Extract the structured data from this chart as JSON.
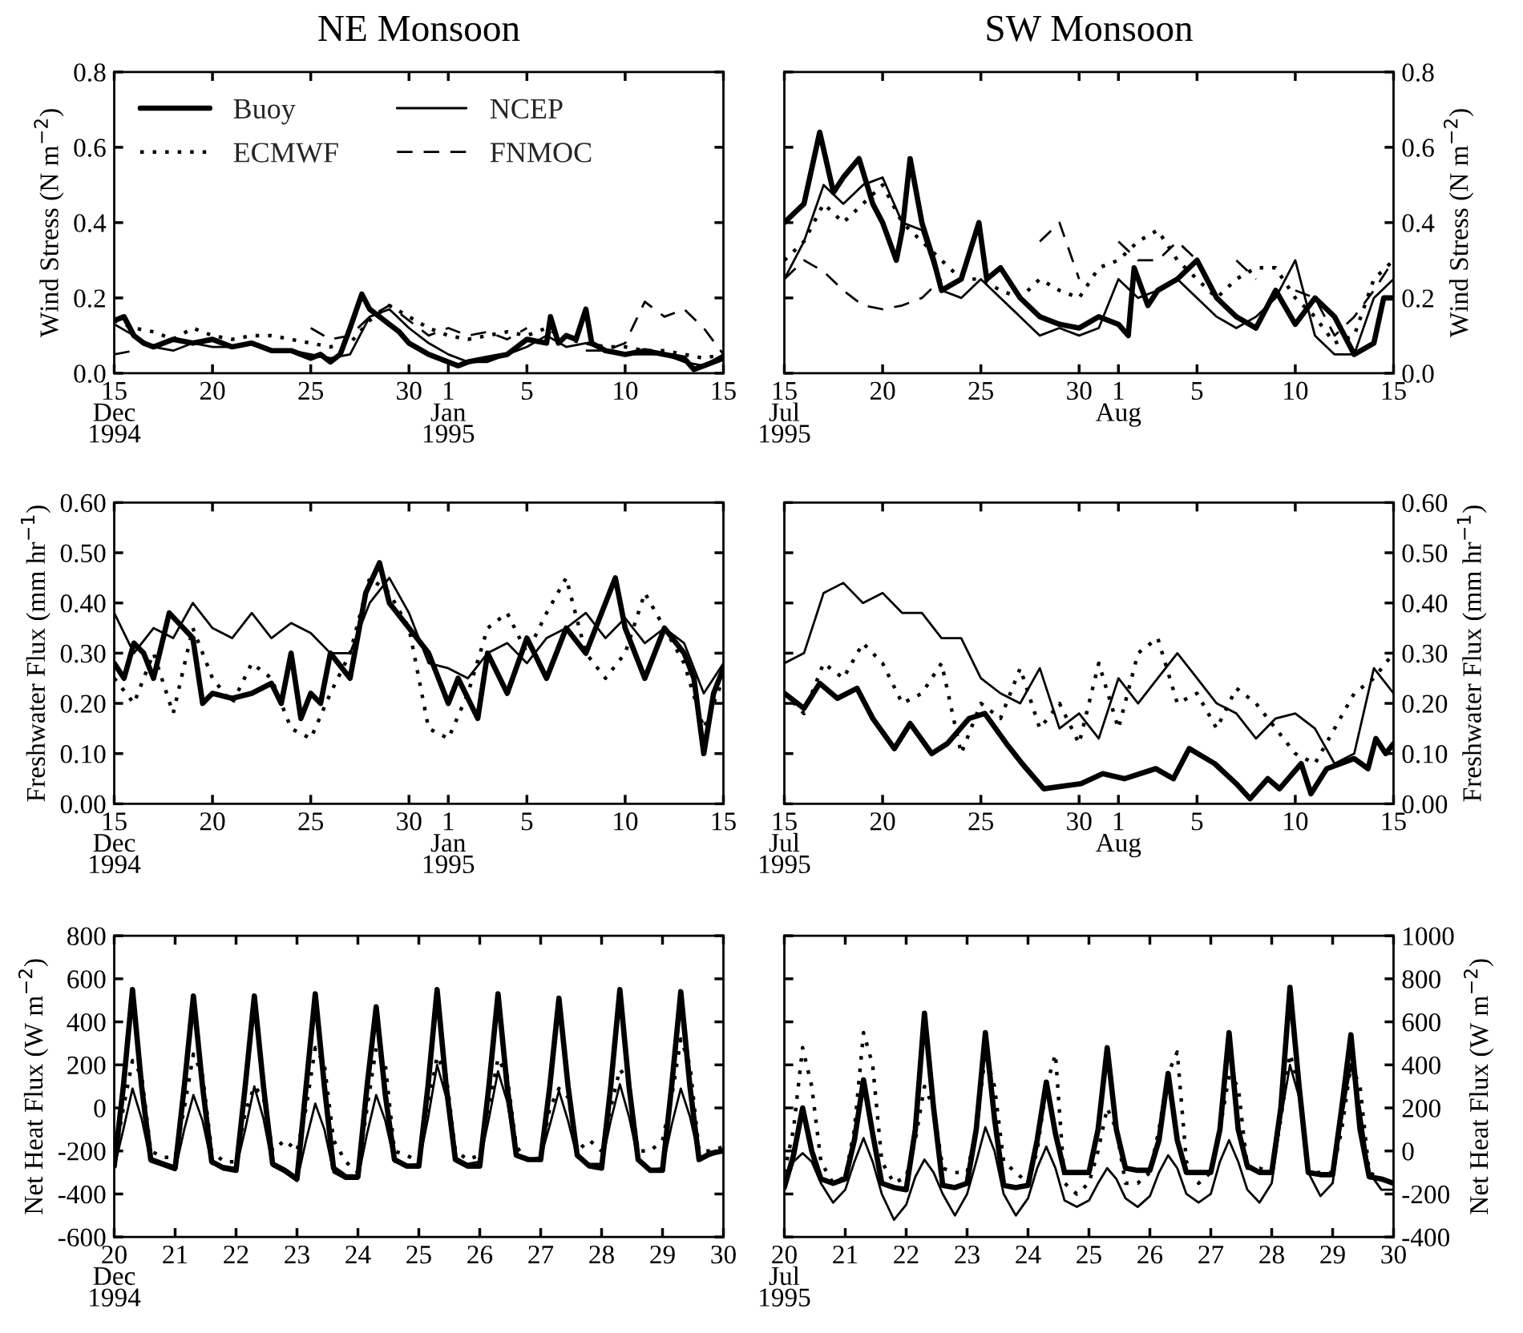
{
  "chart_data": [
    {
      "type": "line",
      "title": "NE Monsoon",
      "ylabel": "Wind Stress (N m$^{−2}$)",
      "legend": "top left",
      "xlim": [
        "1994-12-15",
        "1995-01-15"
      ],
      "ylim": [
        0,
        0.8
      ],
      "xticks": [
        {
          "value": "1994-12-15",
          "label": "15\nDec\n1994"
        },
        {
          "value": "1994-12-20",
          "label": "20"
        },
        {
          "value": "1994-12-25",
          "label": "25"
        },
        {
          "value": "1994-12-30",
          "label": "30"
        },
        {
          "value": "1995-01-01",
          "label": "1\nJan\n1995"
        },
        {
          "value": "1995-01-05",
          "label": "5"
        },
        {
          "value": "1995-01-10",
          "label": "10"
        },
        {
          "value": "1995-01-15",
          "label": "15"
        }
      ],
      "yticks": [
        {
          "value": 0,
          "label": "0.0"
        },
        {
          "value": 0.2,
          "label": "0.2"
        },
        {
          "value": 0.4,
          "label": "0.4"
        },
        {
          "value": 0.6,
          "label": "0.6"
        },
        {
          "value": 0.8,
          "label": "0.8"
        }
      ],
      "x": [
        "1994-12-15",
        "1994-12-16",
        "1994-12-17",
        "1994-12-18",
        "1994-12-19",
        "1994-12-20",
        "1994-12-21",
        "1994-12-22",
        "1994-12-23",
        "1994-12-24",
        "1994-12-25",
        "1994-12-26",
        "1994-12-27",
        "1994-12-28",
        "1994-12-29",
        "1994-12-30",
        "1994-12-31",
        "1995-01-01",
        "1995-01-02",
        "1995-01-03",
        "1995-01-04",
        "1995-01-05",
        "1995-01-06",
        "1995-01-07",
        "1995-01-08",
        "1995-01-09",
        "1995-01-10",
        "1995-01-11",
        "1995-01-12",
        "1995-01-13",
        "1995-01-14",
        "1995-01-15"
      ],
      "series": [
        {
          "name": "Buoy",
          "color": "#000000",
          "line_style": "solid",
          "x": [
            "1994-12-15",
            "1994-12-15T12:00",
            "1994-12-16",
            "1994-12-16T12:00",
            "1994-12-17",
            "1994-12-18",
            "1994-12-19",
            "1994-12-20",
            "1994-12-21",
            "1994-12-22",
            "1994-12-23",
            "1994-12-24",
            "1994-12-25",
            "1994-12-25T12:00",
            "1994-12-26",
            "1994-12-26T12:00",
            "1994-12-27",
            "1994-12-27T14:24",
            "1994-12-28",
            "1994-12-28T12:00",
            "1994-12-29",
            "1994-12-29T12:00",
            "1994-12-30",
            "1994-12-31",
            "1995-01-01",
            "1995-01-01T12:00",
            "1995-01-02",
            "1995-01-03",
            "1995-01-04",
            "1995-01-05",
            "1995-01-06",
            "1995-01-06T04:48",
            "1995-01-06T14:24",
            "1995-01-07",
            "1995-01-07T12:00",
            "1995-01-08",
            "1995-01-08T07:12",
            "1995-01-09",
            "1995-01-10",
            "1995-01-11",
            "1995-01-12",
            "1995-01-13",
            "1995-01-13T12:00",
            "1995-01-14",
            "1995-01-15"
          ],
          "values": [
            0.14,
            0.15,
            0.1,
            0.08,
            0.07,
            0.09,
            0.08,
            0.09,
            0.07,
            0.08,
            0.06,
            0.06,
            0.04,
            0.05,
            0.03,
            0.05,
            0.12,
            0.21,
            0.17,
            0.15,
            0.13,
            0.11,
            0.08,
            0.05,
            0.03,
            0.02,
            0.03,
            0.04,
            0.05,
            0.09,
            0.08,
            0.15,
            0.08,
            0.1,
            0.09,
            0.17,
            0.08,
            0.06,
            0.05,
            0.06,
            0.05,
            0.04,
            0.01,
            0.02,
            0.04
          ]
        },
        {
          "name": "NCEP",
          "color": "#000000",
          "line_style": "solid",
          "values": [
            0.13,
            0.1,
            0.07,
            0.06,
            0.08,
            0.07,
            0.07,
            0.08,
            0.06,
            0.06,
            0.05,
            0.04,
            0.05,
            0.15,
            0.17,
            0.12,
            0.08,
            0.05,
            0.03,
            0.03,
            0.05,
            0.07,
            0.1,
            0.07,
            0.08,
            0.06,
            0.05,
            0.05,
            0.05,
            0.03,
            0.02,
            0.05
          ]
        },
        {
          "name": "ECMWF",
          "color": "#000000",
          "line_style": "dotted",
          "values": [
            0.14,
            0.12,
            0.11,
            0.09,
            0.12,
            0.1,
            0.09,
            0.1,
            0.1,
            0.09,
            0.08,
            0.07,
            0.08,
            0.14,
            0.18,
            0.15,
            0.12,
            0.1,
            0.09,
            0.1,
            0.11,
            0.1,
            0.12,
            0.09,
            0.08,
            0.07,
            0.07,
            0.06,
            0.06,
            0.05,
            0.04,
            0.05
          ]
        },
        {
          "name": "FNMOC",
          "color": "#000000",
          "line_style": "dashed",
          "values": [
            0.05,
            0.06,
            null,
            null,
            null,
            null,
            null,
            null,
            null,
            null,
            0.12,
            0.09,
            0.1,
            0.15,
            0.18,
            0.14,
            0.1,
            0.12,
            0.1,
            0.11,
            0.09,
            0.12,
            null,
            null,
            0.06,
            0.06,
            0.08,
            0.19,
            0.15,
            0.17,
            0.12,
            0.05
          ]
        }
      ]
    },
    {
      "type": "line",
      "title": "SW Monsoon",
      "y2label": "Wind Stress (N m$^{−2}$)",
      "xlim": [
        "1995-07-15",
        "1995-08-15"
      ],
      "y2lim": [
        0,
        0.8
      ],
      "xticks": [
        {
          "value": "1995-07-15",
          "label": "15\nJul\n1995"
        },
        {
          "value": "1995-07-20",
          "label": "20"
        },
        {
          "value": "1995-07-25",
          "label": "25"
        },
        {
          "value": "1995-07-30",
          "label": "30"
        },
        {
          "value": "1995-08-01",
          "label": "1\nAug"
        },
        {
          "value": "1995-08-05",
          "label": "5"
        },
        {
          "value": "1995-08-10",
          "label": "10"
        },
        {
          "value": "1995-08-15",
          "label": "15"
        }
      ],
      "y2ticks": [
        {
          "value": 0,
          "label": "0.0"
        },
        {
          "value": 0.2,
          "label": "0.2"
        },
        {
          "value": 0.4,
          "label": "0.4"
        },
        {
          "value": 0.6,
          "label": "0.6"
        },
        {
          "value": 0.8,
          "label": "0.8"
        }
      ],
      "x": [
        "1995-07-15",
        "1995-07-16",
        "1995-07-17",
        "1995-07-18",
        "1995-07-19",
        "1995-07-20",
        "1995-07-21",
        "1995-07-22",
        "1995-07-23",
        "1995-07-24",
        "1995-07-25",
        "1995-07-26",
        "1995-07-27",
        "1995-07-28",
        "1995-07-29",
        "1995-07-30",
        "1995-07-31",
        "1995-08-01",
        "1995-08-02",
        "1995-08-03",
        "1995-08-04",
        "1995-08-05",
        "1995-08-06",
        "1995-08-07",
        "1995-08-08",
        "1995-08-09",
        "1995-08-10",
        "1995-08-11",
        "1995-08-12",
        "1995-08-13",
        "1995-08-14",
        "1995-08-15"
      ],
      "series": [
        {
          "color": "#000000",
          "line_style": "solid",
          "axis": "y2",
          "x": [
            "1995-07-15",
            "1995-07-16",
            "1995-07-16T19:12",
            "1995-07-17T12:00",
            "1995-07-18",
            "1995-07-18T19:12",
            "1995-07-19T12:00",
            "1995-07-20",
            "1995-07-20T16:48",
            "1995-07-21",
            "1995-07-21T09:36",
            "1995-07-22",
            "1995-07-22T14:24",
            "1995-07-23",
            "1995-07-24",
            "1995-07-24T21:36",
            "1995-07-25T07:12",
            "1995-07-26",
            "1995-07-27",
            "1995-07-28",
            "1995-07-29",
            "1995-07-30",
            "1995-07-31",
            "1995-08-01",
            "1995-08-01T12:00",
            "1995-08-01T19:12",
            "1995-08-02T12:00",
            "1995-08-03",
            "1995-08-04",
            "1995-08-05",
            "1995-08-06",
            "1995-08-07",
            "1995-08-08",
            "1995-08-09",
            "1995-08-10",
            "1995-08-11",
            "1995-08-12",
            "1995-08-13",
            "1995-08-14",
            "1995-08-14T12:00",
            "1995-08-15"
          ],
          "values": [
            0.4,
            0.45,
            0.64,
            0.48,
            0.52,
            0.57,
            0.45,
            0.4,
            0.3,
            0.38,
            0.57,
            0.4,
            0.3,
            0.22,
            0.25,
            0.4,
            0.25,
            0.28,
            0.2,
            0.15,
            0.13,
            0.12,
            0.15,
            0.13,
            0.1,
            0.28,
            0.18,
            0.22,
            0.25,
            0.3,
            0.2,
            0.15,
            0.12,
            0.22,
            0.13,
            0.2,
            0.15,
            0.05,
            0.08,
            0.2,
            0.2
          ]
        },
        {
          "color": "#000000",
          "line_style": "solid",
          "axis": "y2",
          "values": [
            0.25,
            0.35,
            0.5,
            0.45,
            0.5,
            0.52,
            0.4,
            0.38,
            0.22,
            0.2,
            0.25,
            0.2,
            0.15,
            0.1,
            0.12,
            0.1,
            0.12,
            0.25,
            0.2,
            0.22,
            0.25,
            0.2,
            0.15,
            0.12,
            0.15,
            0.2,
            0.3,
            0.1,
            0.05,
            0.05,
            0.2,
            0.25
          ]
        },
        {
          "color": "#000000",
          "line_style": "dotted",
          "axis": "y2",
          "values": [
            0.3,
            0.35,
            0.45,
            0.4,
            0.45,
            0.5,
            0.4,
            0.35,
            0.3,
            0.25,
            0.25,
            0.22,
            0.2,
            0.25,
            0.22,
            0.2,
            0.28,
            0.3,
            0.35,
            0.38,
            0.3,
            0.25,
            0.2,
            0.25,
            0.28,
            0.28,
            0.2,
            0.15,
            0.08,
            0.1,
            0.25,
            0.3
          ]
        },
        {
          "color": "#000000",
          "line_style": "dashed",
          "axis": "y2",
          "values": [
            0.25,
            0.3,
            0.27,
            0.22,
            0.18,
            0.17,
            0.18,
            0.2,
            0.25,
            null,
            null,
            null,
            null,
            0.35,
            0.4,
            0.25,
            null,
            0.35,
            0.3,
            0.3,
            0.35,
            0.3,
            null,
            0.3,
            0.25,
            null,
            0.22,
            0.2,
            0.1,
            0.15,
            0.22,
            0.3
          ]
        }
      ]
    },
    {
      "type": "line",
      "ylabel": "Freshwater Flux (mm hr$^{−1}$)",
      "xlim": [
        "1994-12-15",
        "1995-01-15"
      ],
      "ylim": [
        0,
        0.6
      ],
      "xticks": [
        {
          "value": "1994-12-15",
          "label": "15\nDec\n1994"
        },
        {
          "value": "1994-12-20",
          "label": "20"
        },
        {
          "value": "1994-12-25",
          "label": "25"
        },
        {
          "value": "1994-12-30",
          "label": "30"
        },
        {
          "value": "1995-01-01",
          "label": "1\nJan\n1995"
        },
        {
          "value": "1995-01-05",
          "label": "5"
        },
        {
          "value": "1995-01-10",
          "label": "10"
        },
        {
          "value": "1995-01-15",
          "label": "15"
        }
      ],
      "yticks": [
        {
          "value": 0,
          "label": "0.00"
        },
        {
          "value": 0.1,
          "label": "0.10"
        },
        {
          "value": 0.2,
          "label": "0.20"
        },
        {
          "value": 0.3,
          "label": "0.30"
        },
        {
          "value": 0.4,
          "label": "0.40"
        },
        {
          "value": 0.5,
          "label": "0.50"
        },
        {
          "value": 0.6,
          "label": "0.60"
        }
      ],
      "x": [
        "1994-12-15",
        "1994-12-16",
        "1994-12-17",
        "1994-12-18",
        "1994-12-19",
        "1994-12-20",
        "1994-12-21",
        "1994-12-22",
        "1994-12-23",
        "1994-12-24",
        "1994-12-25",
        "1994-12-26",
        "1994-12-27",
        "1994-12-28",
        "1994-12-29",
        "1994-12-30",
        "1994-12-31",
        "1995-01-01",
        "1995-01-02",
        "1995-01-03",
        "1995-01-04",
        "1995-01-05",
        "1995-01-06",
        "1995-01-07",
        "1995-01-08",
        "1995-01-09",
        "1995-01-10",
        "1995-01-11",
        "1995-01-12",
        "1995-01-13",
        "1995-01-14",
        "1995-01-15"
      ],
      "series": [
        {
          "color": "#000000",
          "line_style": "solid",
          "x": [
            "1994-12-15",
            "1994-12-15T12:00",
            "1994-12-16",
            "1994-12-16T12:00",
            "1994-12-17",
            "1994-12-17T19:12",
            "1994-12-19",
            "1994-12-19T12:00",
            "1994-12-20",
            "1994-12-21",
            "1994-12-22",
            "1994-12-23",
            "1994-12-23T12:00",
            "1994-12-24",
            "1994-12-24T12:00",
            "1994-12-25",
            "1994-12-25T12:00",
            "1994-12-26",
            "1994-12-27",
            "1994-12-27T19:12",
            "1994-12-28T12:00",
            "1994-12-29",
            "1994-12-30",
            "1994-12-31",
            "1995-01-01",
            "1995-01-01T12:00",
            "1995-01-02T12:00",
            "1995-01-03",
            "1995-01-04",
            "1995-01-05",
            "1995-01-06",
            "1995-01-07",
            "1995-01-08",
            "1995-01-09T12:00",
            "1995-01-10",
            "1995-01-11",
            "1995-01-12",
            "1995-01-13",
            "1995-01-13T12:00",
            "1995-01-14",
            "1995-01-14T12:00",
            "1995-01-15"
          ],
          "values": [
            0.28,
            0.25,
            0.32,
            0.3,
            0.25,
            0.38,
            0.33,
            0.2,
            0.22,
            0.21,
            0.22,
            0.24,
            0.2,
            0.3,
            0.17,
            0.22,
            0.2,
            0.3,
            0.25,
            0.42,
            0.48,
            0.4,
            0.35,
            0.3,
            0.2,
            0.25,
            0.17,
            0.3,
            0.22,
            0.33,
            0.25,
            0.35,
            0.3,
            0.45,
            0.35,
            0.25,
            0.35,
            0.3,
            0.25,
            0.1,
            0.22,
            0.27
          ]
        },
        {
          "color": "#000000",
          "line_style": "solid",
          "values": [
            0.38,
            0.3,
            0.35,
            0.33,
            0.4,
            0.35,
            0.33,
            0.38,
            0.33,
            0.36,
            0.34,
            0.3,
            0.3,
            0.4,
            0.45,
            0.38,
            0.28,
            0.27,
            0.25,
            0.3,
            0.32,
            0.28,
            0.33,
            0.35,
            0.38,
            0.33,
            0.37,
            0.32,
            0.35,
            0.32,
            0.22,
            0.28
          ]
        },
        {
          "color": "#000000",
          "line_style": "dotted",
          "values": [
            0.25,
            0.2,
            0.3,
            0.18,
            0.35,
            0.25,
            0.2,
            0.28,
            0.25,
            0.15,
            0.13,
            0.22,
            0.3,
            0.45,
            0.42,
            0.35,
            0.15,
            0.13,
            0.22,
            0.35,
            0.38,
            0.3,
            0.38,
            0.45,
            0.3,
            0.25,
            0.3,
            0.42,
            0.35,
            0.28,
            0.15,
            0.25
          ]
        }
      ]
    },
    {
      "type": "line",
      "y2label": "Freshwater Flux (mm hr$^{−1}$)",
      "xlim": [
        "1995-07-15",
        "1995-08-15"
      ],
      "y2lim": [
        0,
        0.6
      ],
      "xticks": [
        {
          "value": "1995-07-15",
          "label": "15\nJul\n1995"
        },
        {
          "value": "1995-07-20",
          "label": "20"
        },
        {
          "value": "1995-07-25",
          "label": "25"
        },
        {
          "value": "1995-07-30",
          "label": "30"
        },
        {
          "value": "1995-08-01",
          "label": "1\nAug"
        },
        {
          "value": "1995-08-05",
          "label": "5"
        },
        {
          "value": "1995-08-10",
          "label": "10"
        },
        {
          "value": "1995-08-15",
          "label": "15"
        }
      ],
      "y2ticks": [
        {
          "value": 0,
          "label": "0.00"
        },
        {
          "value": 0.1,
          "label": "0.10"
        },
        {
          "value": 0.2,
          "label": "0.20"
        },
        {
          "value": 0.3,
          "label": "0.30"
        },
        {
          "value": 0.4,
          "label": "0.40"
        },
        {
          "value": 0.5,
          "label": "0.50"
        },
        {
          "value": 0.6,
          "label": "0.60"
        }
      ],
      "x": [
        "1995-07-15",
        "1995-07-16",
        "1995-07-17",
        "1995-07-18",
        "1995-07-19",
        "1995-07-20",
        "1995-07-21",
        "1995-07-22",
        "1995-07-23",
        "1995-07-24",
        "1995-07-25",
        "1995-07-26",
        "1995-07-27",
        "1995-07-28",
        "1995-07-29",
        "1995-07-30",
        "1995-07-31",
        "1995-08-01",
        "1995-08-02",
        "1995-08-03",
        "1995-08-04",
        "1995-08-05",
        "1995-08-06",
        "1995-08-07",
        "1995-08-08",
        "1995-08-09",
        "1995-08-10",
        "1995-08-11",
        "1995-08-12",
        "1995-08-13",
        "1995-08-14",
        "1995-08-15"
      ],
      "series": [
        {
          "color": "#000000",
          "line_style": "solid",
          "axis": "y2",
          "x": [
            "1995-07-15",
            "1995-07-16",
            "1995-07-16T19:12",
            "1995-07-17T16:48",
            "1995-07-18T16:48",
            "1995-07-19T12:00",
            "1995-07-20T14:24",
            "1995-07-21T09:36",
            "1995-07-22T12:00",
            "1995-07-23T07:12",
            "1995-07-24T09:36",
            "1995-07-25T04:48",
            "1995-07-26T07:12",
            "1995-07-27T02:24",
            "1995-07-28T04:48",
            "1995-07-30T02:24",
            "1995-07-31T04:48",
            "1995-08-01T07:12",
            "1995-08-02T21:36",
            "1995-08-03T19:12",
            "1995-08-04T14:24",
            "1995-08-05T21:36",
            "1995-08-07",
            "1995-08-07T16:48",
            "1995-08-08T14:24",
            "1995-08-09T04:48",
            "1995-08-10T07:12",
            "1995-08-10T19:12",
            "1995-08-11T14:24",
            "1995-08-13",
            "1995-08-13T16:48",
            "1995-08-14T02:24",
            "1995-08-14T14:24",
            "1995-08-15"
          ],
          "values": [
            0.22,
            0.19,
            0.24,
            0.21,
            0.23,
            0.17,
            0.11,
            0.16,
            0.1,
            0.12,
            0.17,
            0.18,
            0.12,
            0.08,
            0.03,
            0.04,
            0.06,
            0.05,
            0.07,
            0.05,
            0.11,
            0.08,
            0.04,
            0.01,
            0.05,
            0.03,
            0.08,
            0.02,
            0.07,
            0.09,
            0.07,
            0.13,
            0.1,
            0.12
          ]
        },
        {
          "color": "#000000",
          "line_style": "solid",
          "axis": "y2",
          "values": [
            0.28,
            0.3,
            0.42,
            0.44,
            0.4,
            0.42,
            0.38,
            0.38,
            0.33,
            0.33,
            0.25,
            0.22,
            0.2,
            0.27,
            0.15,
            0.18,
            0.13,
            0.25,
            0.2,
            0.25,
            0.3,
            0.25,
            0.2,
            0.18,
            0.13,
            0.17,
            0.18,
            0.15,
            0.08,
            0.1,
            0.27,
            0.22
          ]
        },
        {
          "color": "#000000",
          "line_style": "dotted",
          "axis": "y2",
          "values": [
            0.22,
            0.18,
            0.28,
            0.25,
            0.32,
            0.28,
            0.2,
            0.22,
            0.28,
            0.1,
            0.2,
            0.17,
            0.27,
            0.15,
            0.2,
            0.12,
            0.28,
            0.15,
            0.3,
            0.33,
            0.2,
            0.22,
            0.15,
            0.23,
            0.2,
            0.15,
            0.1,
            0.08,
            0.15,
            0.22,
            0.25,
            0.3
          ]
        }
      ]
    },
    {
      "type": "line",
      "ylabel": "Net Heat Flux (W m$^{−2}$)",
      "xlim": [
        "1994-12-20",
        "1994-12-30"
      ],
      "ylim": [
        -600,
        800
      ],
      "xticks": [
        {
          "value": "1994-12-20",
          "label": "20\nDec\n1994"
        },
        {
          "value": "1994-12-21",
          "label": "21"
        },
        {
          "value": "1994-12-22",
          "label": "22"
        },
        {
          "value": "1994-12-23",
          "label": "23"
        },
        {
          "value": "1994-12-24",
          "label": "24"
        },
        {
          "value": "1994-12-25",
          "label": "25"
        },
        {
          "value": "1994-12-26",
          "label": "26"
        },
        {
          "value": "1994-12-27",
          "label": "27"
        },
        {
          "value": "1994-12-28",
          "label": "28"
        },
        {
          "value": "1994-12-29",
          "label": "29"
        },
        {
          "value": "1994-12-30",
          "label": "30"
        }
      ],
      "yticks": [
        -600,
        -400,
        -200,
        0,
        200,
        400,
        600,
        800
      ],
      "x": [
        "1994-12-20",
        "1994-12-20T03:36",
        "1994-12-20T07:12",
        "1994-12-20T10:48",
        "1994-12-20T14:24",
        "1994-12-20T19:12",
        "1994-12-21",
        "1994-12-21T03:36",
        "1994-12-21T07:12",
        "1994-12-21T10:48",
        "1994-12-21T14:24",
        "1994-12-21T19:12",
        "1994-12-22",
        "1994-12-22T03:36",
        "1994-12-22T07:12",
        "1994-12-22T10:48",
        "1994-12-22T14:24",
        "1994-12-22T19:12",
        "1994-12-23",
        "1994-12-23T03:36",
        "1994-12-23T07:12",
        "1994-12-23T10:48",
        "1994-12-23T14:24",
        "1994-12-23T19:12",
        "1994-12-24",
        "1994-12-24T03:36",
        "1994-12-24T07:12",
        "1994-12-24T10:48",
        "1994-12-24T14:24",
        "1994-12-24T19:12",
        "1994-12-25",
        "1994-12-25T03:36",
        "1994-12-25T07:12",
        "1994-12-25T10:48",
        "1994-12-25T14:24",
        "1994-12-25T19:12",
        "1994-12-26",
        "1994-12-26T03:36",
        "1994-12-26T07:12",
        "1994-12-26T10:48",
        "1994-12-26T14:24",
        "1994-12-26T19:12",
        "1994-12-27",
        "1994-12-27T03:36",
        "1994-12-27T07:12",
        "1994-12-27T10:48",
        "1994-12-27T14:24",
        "1994-12-27T19:12",
        "1994-12-28",
        "1994-12-28T03:36",
        "1994-12-28T07:12",
        "1994-12-28T10:48",
        "1994-12-28T14:24",
        "1994-12-28T19:12",
        "1994-12-29",
        "1994-12-29T03:36",
        "1994-12-29T07:12",
        "1994-12-29T10:48",
        "1994-12-29T14:24",
        "1994-12-29T19:12",
        "1994-12-30"
      ],
      "series": [
        {
          "color": "#000000",
          "line_style": "solid",
          "values": [
            -270,
            100,
            550,
            100,
            -240,
            -260,
            -280,
            100,
            520,
            100,
            -250,
            -280,
            -290,
            100,
            520,
            100,
            -260,
            -290,
            -330,
            100,
            530,
            100,
            -280,
            -320,
            -320,
            100,
            470,
            60,
            -240,
            -270,
            -270,
            100,
            550,
            100,
            -240,
            -270,
            -270,
            100,
            530,
            100,
            -220,
            -240,
            -240,
            100,
            510,
            100,
            -220,
            -270,
            -280,
            100,
            550,
            100,
            -240,
            -290,
            -290,
            100,
            540,
            100,
            -240,
            -210,
            -200
          ]
        },
        {
          "color": "#000000",
          "line_style": "solid",
          "values": [
            -280,
            -100,
            90,
            -50,
            -250,
            -270,
            -290,
            -100,
            60,
            -60,
            -260,
            -270,
            -280,
            -100,
            100,
            -50,
            -270,
            -300,
            -340,
            -150,
            20,
            -100,
            -300,
            -330,
            -330,
            -120,
            60,
            -60,
            -250,
            -270,
            -260,
            -50,
            200,
            50,
            -230,
            -260,
            -250,
            -50,
            170,
            30,
            -220,
            -240,
            -230,
            -80,
            80,
            -60,
            -230,
            -260,
            -260,
            -60,
            110,
            -40,
            -240,
            -290,
            -280,
            -80,
            90,
            -40,
            -230,
            -220,
            -200
          ]
        },
        {
          "color": "#000000",
          "line_style": "dotted",
          "values": [
            -250,
            0,
            220,
            150,
            -200,
            -230,
            -230,
            0,
            250,
            150,
            -200,
            -250,
            -250,
            -20,
            100,
            50,
            -200,
            -150,
            -200,
            0,
            280,
            200,
            -150,
            -250,
            -300,
            0,
            280,
            200,
            -200,
            -220,
            -250,
            0,
            240,
            150,
            -200,
            -240,
            -220,
            0,
            230,
            150,
            -180,
            -250,
            -230,
            0,
            90,
            50,
            -200,
            -150,
            -200,
            0,
            180,
            120,
            -200,
            -200,
            -150,
            50,
            320,
            200,
            -200,
            -200,
            -180
          ]
        }
      ]
    },
    {
      "type": "line",
      "y2label": "Net Heat Flux (W m$^{−2}$)",
      "xlim": [
        "1995-07-20",
        "1995-07-30"
      ],
      "y2lim": [
        -400,
        1000
      ],
      "xticks": [
        {
          "value": "1995-07-20",
          "label": "20\nJul\n1995"
        },
        {
          "value": "1995-07-21",
          "label": "21"
        },
        {
          "value": "1995-07-22",
          "label": "22"
        },
        {
          "value": "1995-07-23",
          "label": "23"
        },
        {
          "value": "1995-07-24",
          "label": "24"
        },
        {
          "value": "1995-07-25",
          "label": "25"
        },
        {
          "value": "1995-07-26",
          "label": "26"
        },
        {
          "value": "1995-07-27",
          "label": "27"
        },
        {
          "value": "1995-07-28",
          "label": "28"
        },
        {
          "value": "1995-07-29",
          "label": "29"
        },
        {
          "value": "1995-07-30",
          "label": "30"
        }
      ],
      "y2ticks": [
        -400,
        -200,
        0,
        200,
        400,
        600,
        800,
        1000
      ],
      "x": [
        "1995-07-20",
        "1995-07-20T03:36",
        "1995-07-20T07:12",
        "1995-07-20T10:48",
        "1995-07-20T14:24",
        "1995-07-20T19:12",
        "1995-07-21",
        "1995-07-21T03:36",
        "1995-07-21T07:12",
        "1995-07-21T10:48",
        "1995-07-21T14:24",
        "1995-07-21T19:12",
        "1995-07-22",
        "1995-07-22T03:36",
        "1995-07-22T07:12",
        "1995-07-22T10:48",
        "1995-07-22T14:24",
        "1995-07-22T19:12",
        "1995-07-23",
        "1995-07-23T03:36",
        "1995-07-23T07:12",
        "1995-07-23T10:48",
        "1995-07-23T14:24",
        "1995-07-23T19:12",
        "1995-07-24",
        "1995-07-24T03:36",
        "1995-07-24T07:12",
        "1995-07-24T10:48",
        "1995-07-24T14:24",
        "1995-07-24T19:12",
        "1995-07-25",
        "1995-07-25T03:36",
        "1995-07-25T07:12",
        "1995-07-25T10:48",
        "1995-07-25T14:24",
        "1995-07-25T19:12",
        "1995-07-26",
        "1995-07-26T03:36",
        "1995-07-26T07:12",
        "1995-07-26T10:48",
        "1995-07-26T14:24",
        "1995-07-26T19:12",
        "1995-07-27",
        "1995-07-27T03:36",
        "1995-07-27T07:12",
        "1995-07-27T10:48",
        "1995-07-27T14:24",
        "1995-07-27T19:12",
        "1995-07-28",
        "1995-07-28T03:36",
        "1995-07-28T07:12",
        "1995-07-28T10:48",
        "1995-07-28T14:24",
        "1995-07-28T19:12",
        "1995-07-29",
        "1995-07-29T03:36",
        "1995-07-29T07:12",
        "1995-07-29T10:48",
        "1995-07-29T14:24",
        "1995-07-29T19:12",
        "1995-07-30"
      ],
      "series": [
        {
          "color": "#000000",
          "line_style": "solid",
          "axis": "y2",
          "values": [
            -170,
            -20,
            200,
            0,
            -130,
            -150,
            -130,
            50,
            330,
            80,
            -150,
            -170,
            -180,
            100,
            640,
            200,
            -160,
            -170,
            -150,
            100,
            550,
            150,
            -160,
            -170,
            -160,
            50,
            320,
            80,
            -100,
            -100,
            -100,
            100,
            480,
            100,
            -80,
            -90,
            -90,
            50,
            360,
            50,
            -100,
            -100,
            -100,
            100,
            550,
            100,
            -70,
            -100,
            -100,
            200,
            760,
            300,
            -100,
            -110,
            -110,
            200,
            540,
            100,
            -120,
            -130,
            -150
          ]
        },
        {
          "color": "#000000",
          "line_style": "solid",
          "axis": "y2",
          "values": [
            -180,
            -50,
            -10,
            -50,
            -150,
            -240,
            -180,
            -50,
            60,
            -50,
            -200,
            -320,
            -250,
            -120,
            -40,
            -100,
            -200,
            -300,
            -200,
            -50,
            110,
            0,
            -200,
            -300,
            -220,
            -80,
            20,
            -80,
            -230,
            -260,
            -230,
            -150,
            -80,
            -130,
            -220,
            -260,
            -210,
            -100,
            -20,
            -80,
            -200,
            -240,
            -200,
            -50,
            50,
            -50,
            -180,
            -240,
            -150,
            150,
            400,
            250,
            -100,
            -210,
            -150,
            150,
            400,
            200,
            -100,
            -180,
            -180
          ]
        },
        {
          "color": "#000000",
          "line_style": "dotted",
          "axis": "y2",
          "values": [
            -100,
            100,
            480,
            300,
            -50,
            -150,
            -120,
            100,
            550,
            400,
            -50,
            -150,
            -120,
            50,
            300,
            200,
            -80,
            -100,
            -100,
            100,
            450,
            300,
            -50,
            -100,
            -150,
            0,
            300,
            450,
            -150,
            -200,
            -150,
            0,
            200,
            100,
            -150,
            -150,
            -100,
            100,
            360,
            460,
            -50,
            -150,
            -100,
            100,
            350,
            300,
            -80,
            -80,
            -100,
            150,
            450,
            300,
            -100,
            -100,
            -100,
            100,
            400,
            300,
            -100,
            -130,
            -150
          ]
        }
      ]
    }
  ]
}
